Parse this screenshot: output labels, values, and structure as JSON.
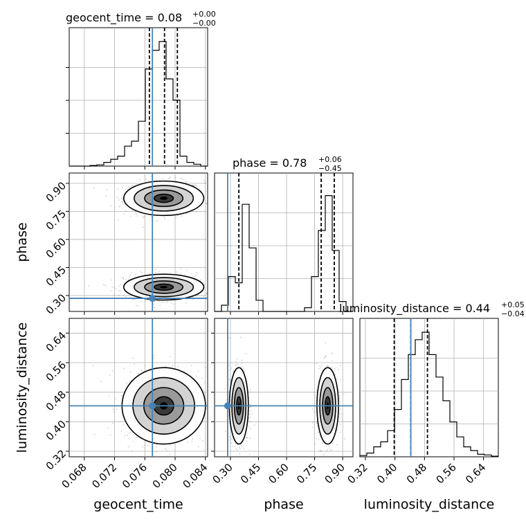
{
  "chart_data": {
    "type": "corner",
    "parameters": [
      "geocent_time",
      "phase",
      "luminosity_distance"
    ],
    "titles": [
      {
        "param": "geocent_time",
        "prefix": "geocent_time = ",
        "median": "0.08",
        "plus": "+0.00",
        "minus": "−0.00"
      },
      {
        "param": "phase",
        "prefix": "phase = ",
        "median": "0.78",
        "plus": "+0.06",
        "minus": "−0.45"
      },
      {
        "param": "luminosity_distance",
        "prefix": "luminosity_distance = ",
        "median": "0.44",
        "plus": "+0.05",
        "minus": "−0.04"
      }
    ],
    "ranges": {
      "geocent_time": [
        0.066,
        0.0843
      ],
      "phase": [
        0.215,
        0.955
      ],
      "luminosity_distance": [
        0.305,
        0.68
      ]
    },
    "ticks": {
      "geocent_time": [
        "0.068",
        "0.072",
        "0.076",
        "0.080",
        "0.084"
      ],
      "phase": [
        "0.30",
        "0.45",
        "0.60",
        "0.75",
        "0.90"
      ],
      "luminosity_distance": [
        "0.32",
        "0.40",
        "0.48",
        "0.56",
        "0.64"
      ]
    },
    "truths": {
      "geocent_time": 0.077,
      "phase": 0.285,
      "luminosity_distance": 0.443
    },
    "quantiles": {
      "geocent_time": [
        0.0766,
        0.0786,
        0.0803
      ],
      "phase": [
        0.345,
        0.785,
        0.855
      ],
      "luminosity_distance": [
        0.398,
        0.443,
        0.488
      ]
    },
    "histograms": {
      "geocent_time": [
        0,
        0,
        0,
        0.005,
        0.01,
        0.03,
        0.055,
        0.08,
        0.16,
        0.2,
        0.36,
        0.78,
        0.93,
        1.0,
        0.7,
        0.53,
        0.08,
        0.03,
        0.015,
        0
      ],
      "phase": [
        0,
        0.05,
        0.28,
        0.23,
        0.86,
        0.51,
        0.09,
        0,
        0,
        0,
        0,
        0,
        0,
        0.03,
        0.28,
        0.65,
        0.93,
        0.49,
        0.08,
        0
      ],
      "luminosity_distance": [
        0.01,
        0.03,
        0.08,
        0.12,
        0.21,
        0.38,
        0.62,
        0.82,
        0.94,
        1.0,
        0.82,
        0.64,
        0.45,
        0.28,
        0.16,
        0.08,
        0.05,
        0.02,
        0.015,
        0.005
      ]
    },
    "modes_2d": {
      "phase_vs_geocent_time": [
        {
          "x": 0.0785,
          "y": 0.82,
          "sx": 0.0023,
          "sy": 0.04
        },
        {
          "x": 0.0785,
          "y": 0.345,
          "sx": 0.0023,
          "sy": 0.03
        }
      ],
      "luminosity_distance_vs_geocent_time": [
        {
          "x": 0.0785,
          "y": 0.443,
          "sx": 0.0024,
          "sy": 0.045
        }
      ],
      "luminosity_distance_vs_phase": [
        {
          "x": 0.345,
          "y": 0.443,
          "sx": 0.022,
          "sy": 0.045
        },
        {
          "x": 0.82,
          "y": 0.443,
          "sx": 0.025,
          "sy": 0.045
        }
      ]
    }
  }
}
